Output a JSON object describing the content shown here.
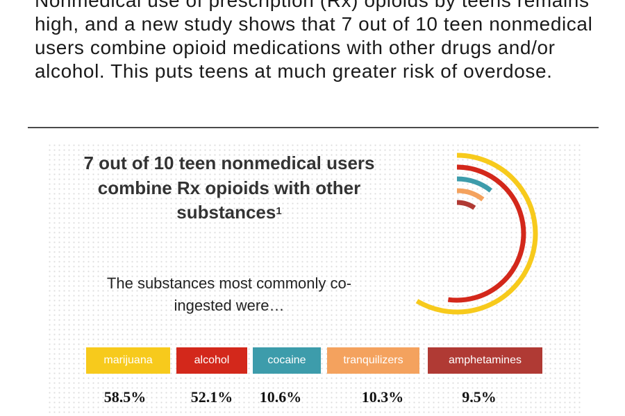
{
  "intro_text": "Nonmedical use of prescription (Rx) opioids by teens remains high, and a new study shows that 7 out of 10 teen nonmedical users combine opioid medications with other drugs and/or alcohol. This puts teens at much greater risk of overdose.",
  "chart_data": {
    "type": "radial-bar",
    "title": "7 out of 10 teen nonmedical users combine Rx opioids with other substances",
    "title_footnote": "1",
    "subtitle": "The substances most commonly co-ingested were…",
    "unit": "%",
    "categories": [
      "marijuana",
      "alcohol",
      "cocaine",
      "tranquilizers",
      "amphetamines"
    ],
    "values": [
      58.5,
      52.1,
      10.6,
      10.3,
      9.5
    ],
    "value_labels": [
      "58.5%",
      "52.1%",
      "10.6%",
      "10.3%",
      "9.5%"
    ],
    "colors": [
      "#f7ca1c",
      "#d3281b",
      "#3d9cab",
      "#f4a25e",
      "#b03a34"
    ],
    "legend_position": "bottom"
  }
}
